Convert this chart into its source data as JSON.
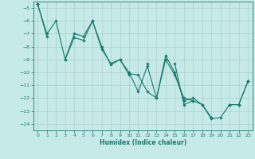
{
  "xlabel": "Humidex (Indice chaleur)",
  "xlim": [
    -0.5,
    23.5
  ],
  "ylim": [
    -14.5,
    -4.5
  ],
  "yticks": [
    -14,
    -13,
    -12,
    -11,
    -10,
    -9,
    -8,
    -7,
    -6,
    -5
  ],
  "xticks": [
    0,
    1,
    2,
    3,
    4,
    5,
    6,
    7,
    8,
    9,
    10,
    11,
    12,
    13,
    14,
    15,
    16,
    17,
    18,
    19,
    20,
    21,
    22,
    23
  ],
  "bg_color": "#c5eae8",
  "grid_color": "#b0cece",
  "line_color": "#1a7a6e",
  "series": [
    [
      -4.7,
      -7.0,
      -6.0,
      -9.0,
      -7.0,
      -7.2,
      -6.0,
      -8.0,
      -9.4,
      -9.0,
      -10.0,
      -11.5,
      -9.5,
      -12.0,
      -8.7,
      -10.0,
      -12.2,
      -12.0,
      -12.5,
      -13.5,
      null,
      -12.5,
      -12.5,
      -10.7
    ],
    [
      -4.7,
      -7.2,
      null,
      -9.0,
      -7.3,
      -7.5,
      -6.0,
      -8.2,
      -9.3,
      -9.0,
      -10.2,
      null,
      -9.3,
      null,
      null,
      -9.3,
      -12.5,
      -12.2,
      null,
      -13.5,
      null,
      -12.5,
      null,
      -10.7
    ],
    [
      -4.7,
      null,
      null,
      null,
      null,
      null,
      null,
      null,
      null,
      null,
      -10.1,
      -10.2,
      -11.5,
      -12.0,
      -9.0,
      -10.2,
      -12.0,
      -12.2,
      -12.5,
      -13.6,
      -13.5,
      -12.5,
      -12.5,
      -10.7
    ]
  ]
}
